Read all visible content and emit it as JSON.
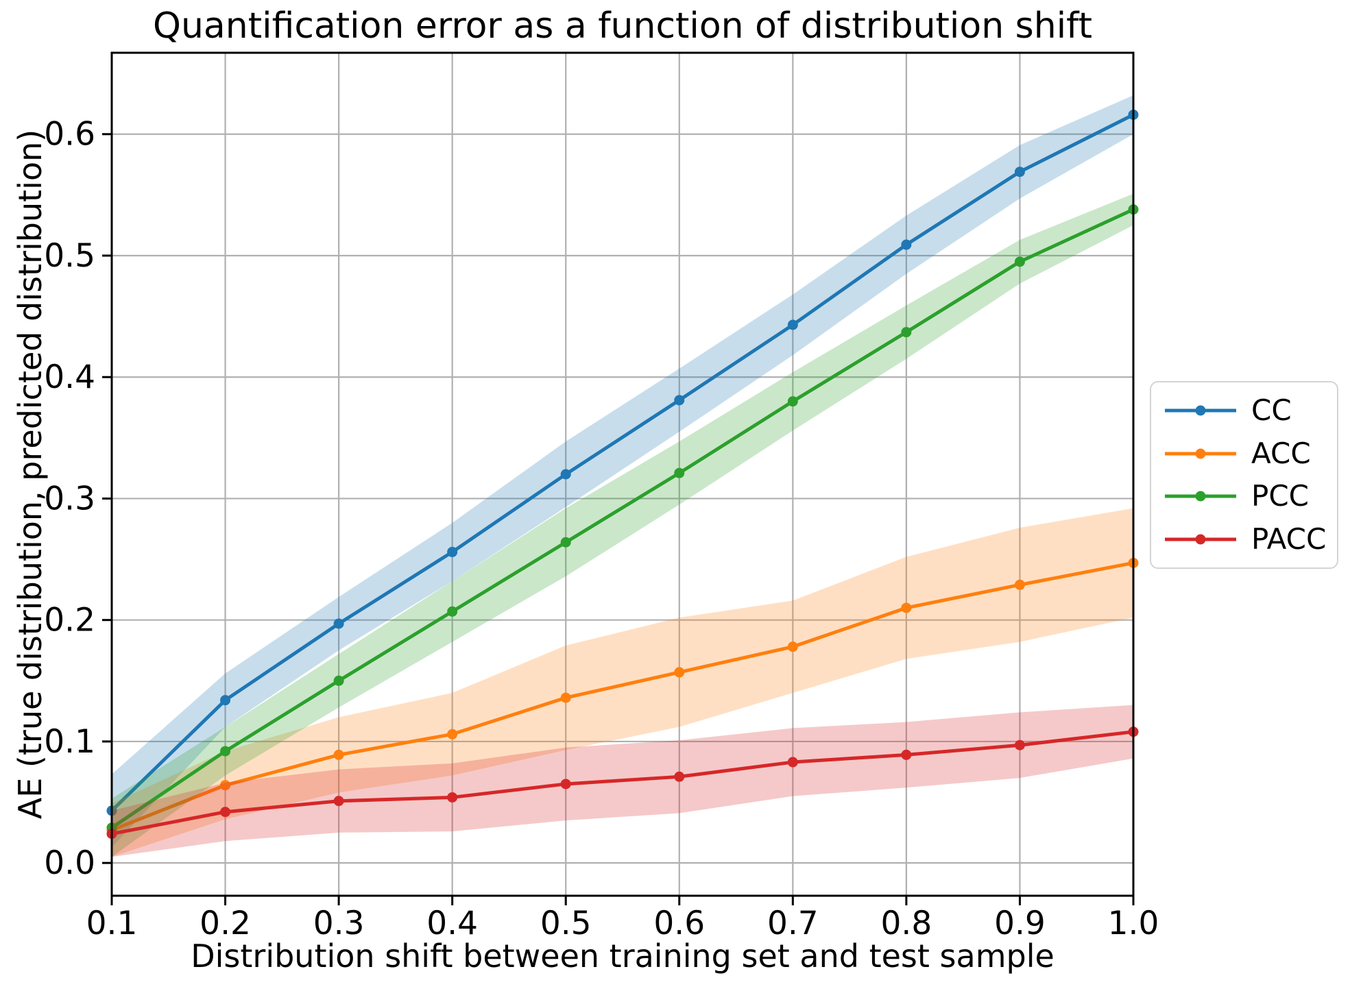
{
  "chart_data": {
    "type": "line",
    "title": "Quantification error as a function of distribution shift",
    "xlabel": "Distribution shift between training set and test sample",
    "ylabel": "AE (true distribution, predicted distribution)",
    "x": [
      0.1,
      0.2,
      0.3,
      0.4,
      0.5,
      0.6,
      0.7,
      0.8,
      0.9,
      1.0
    ],
    "x_tick_labels": [
      "0.1",
      "0.2",
      "0.3",
      "0.4",
      "0.5",
      "0.6",
      "0.7",
      "0.8",
      "0.9",
      "1.0"
    ],
    "y_tick_values": [
      0.0,
      0.1,
      0.2,
      0.3,
      0.4,
      0.5,
      0.6
    ],
    "y_tick_labels": [
      "0.0",
      "0.1",
      "0.2",
      "0.3",
      "0.4",
      "0.5",
      "0.6"
    ],
    "xlim": [
      0.1,
      1.0
    ],
    "ylim": [
      -0.027,
      0.667
    ],
    "grid": true,
    "legend_position": "outside-right",
    "band_alpha": 0.25,
    "grid_color": "#b0b0b0",
    "series": [
      {
        "name": "CC",
        "color": "#1f77b4",
        "values": [
          0.043,
          0.134,
          0.197,
          0.256,
          0.32,
          0.381,
          0.443,
          0.509,
          0.569,
          0.616
        ],
        "band_halfwidth": [
          0.03,
          0.022,
          0.022,
          0.024,
          0.027,
          0.026,
          0.025,
          0.024,
          0.022,
          0.016
        ]
      },
      {
        "name": "ACC",
        "color": "#ff7f0e",
        "values": [
          0.027,
          0.064,
          0.089,
          0.106,
          0.136,
          0.157,
          0.178,
          0.21,
          0.229,
          0.247
        ],
        "band_halfwidth": [
          0.022,
          0.028,
          0.031,
          0.034,
          0.043,
          0.045,
          0.038,
          0.042,
          0.047,
          0.045
        ]
      },
      {
        "name": "PCC",
        "color": "#2ca02c",
        "values": [
          0.029,
          0.092,
          0.15,
          0.207,
          0.264,
          0.321,
          0.38,
          0.437,
          0.495,
          0.538
        ],
        "band_halfwidth": [
          0.024,
          0.02,
          0.022,
          0.025,
          0.028,
          0.026,
          0.024,
          0.022,
          0.018,
          0.013
        ]
      },
      {
        "name": "PACC",
        "color": "#d62728",
        "values": [
          0.024,
          0.042,
          0.051,
          0.054,
          0.065,
          0.071,
          0.083,
          0.089,
          0.097,
          0.108
        ],
        "band_halfwidth": [
          0.019,
          0.024,
          0.026,
          0.028,
          0.03,
          0.03,
          0.028,
          0.027,
          0.027,
          0.022
        ]
      }
    ]
  }
}
